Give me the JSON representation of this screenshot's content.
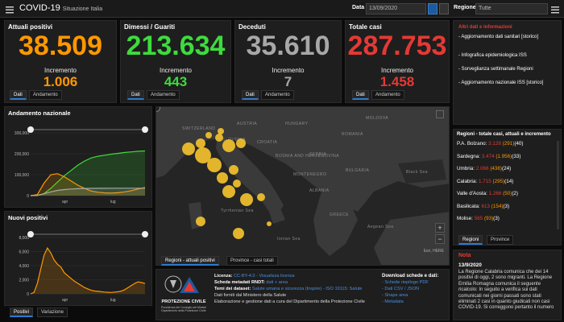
{
  "header": {
    "title": "COVID-19",
    "subtitle": "Situazione Italia",
    "date_label": "Data",
    "date_value": "13/09/2020",
    "region_label": "Regione",
    "region_value": "Tutte"
  },
  "kpis": [
    {
      "title": "Attuali positivi",
      "value": "38.509",
      "inc_label": "Incremento",
      "inc": "1.006",
      "color": "#ff9800",
      "inc_color": "#ff9800",
      "tabs": [
        "Dati",
        "Andamento"
      ]
    },
    {
      "title": "Dimessi / Guariti",
      "value": "213.634",
      "inc_label": "Incremento",
      "inc": "443",
      "color": "#3ddc3d",
      "inc_color": "#3ddc3d",
      "tabs": [
        "Dati",
        "Andamento"
      ]
    },
    {
      "title": "Deceduti",
      "value": "35.610",
      "inc_label": "Incremento",
      "inc": "7",
      "color": "#a8a8a8",
      "inc_color": "#a8a8a8",
      "tabs": [
        "Dati",
        "Andamento"
      ]
    },
    {
      "title": "Totale casi",
      "value": "287.753",
      "inc_label": "Incremento",
      "inc": "1.458",
      "color": "#e53935",
      "inc_color": "#e53935",
      "tabs": [
        "Dati",
        "Andamento"
      ]
    }
  ],
  "info_panel": {
    "title": "Altri dati e informazioni",
    "items": [
      "- Aggiornamento dati sanitari [storico]",
      "- Infografica epidemiologica ISS",
      "- Sorveglianza settimanale Regioni",
      "- Aggiornamento nazionale ISS [storico]"
    ]
  },
  "regions_panel": {
    "title": "Regioni - totale casi, attuali e incremento",
    "rows": [
      {
        "name": "P.A. Bolzano:",
        "total": "3.128",
        "active": "(291)",
        "inc": "(40)"
      },
      {
        "name": "Sardegna:",
        "total": "3.474",
        "active": "(1.956)",
        "inc": "(33)"
      },
      {
        "name": "Umbria:",
        "total": "2.066",
        "active": "(438)",
        "inc": "(24)"
      },
      {
        "name": "Calabria:",
        "total": "1.715",
        "active": "(295)",
        "inc": "(14)"
      },
      {
        "name": "Valle d'Aosta:",
        "total": "1.266",
        "active": "(50)",
        "inc": "(2)"
      },
      {
        "name": "Basilicata:",
        "total": "613",
        "active": "(154)",
        "inc": "(3)"
      },
      {
        "name": "Molise:",
        "total": "565",
        "active": "(93)",
        "inc": "(3)"
      }
    ],
    "tabs": [
      "Regioni",
      "Province"
    ]
  },
  "note_panel": {
    "title": "Nota",
    "date": "13/9/2020",
    "text": "La Regione Calabria comunica che dei 14 positivi di oggi, 2 sono migranti. La Regione Emilia Romagna comunica il seguente ricalcolo: In seguito a verifica sui dati comunicati nei giorni passati sono stati eliminati 2 casi in quanto giudicati non casi COVID-19. Si correggono pertanto il numero"
  },
  "map_panel": {
    "tabs": [
      "Regioni - attuali positivi",
      "Province - casi totali"
    ],
    "labels": [
      "SWITZERLAND",
      "AUSTRIA",
      "HUNGARY",
      "SLOVENIA",
      "CROATIA",
      "BOSNIA AND HERZEGOVINA",
      "SERBIA",
      "MOLDOVA",
      "ROMANIA",
      "BULGARIA",
      "Black Sea",
      "ALBANIA",
      "MONTENEGRO",
      "Tyrrhenian Sea",
      "GREECE",
      "Aegean Sea",
      "Ionian Sea"
    ],
    "attribution": "Esri, HERE"
  },
  "andamento": {
    "title": "Andamento nazionale",
    "chart_data": {
      "type": "area",
      "x_ticks": [
        "apr",
        "lug"
      ],
      "y_ticks": [
        "300,000",
        "200,000",
        "100,000",
        "0"
      ],
      "ylim": [
        0,
        300000
      ],
      "series": [
        {
          "color": "#3ddc3d",
          "values": [
            0,
            1000,
            10000,
            35000,
            65000,
            95000,
            120000,
            145000,
            165000,
            180000,
            188000,
            193000,
            198000,
            202000,
            206000,
            209000,
            212000,
            213634
          ]
        },
        {
          "color": "#ff9800",
          "values": [
            0,
            5000,
            60000,
            100000,
            105000,
            90000,
            70000,
            50000,
            35000,
            22000,
            16000,
            13000,
            12500,
            14000,
            18000,
            24000,
            32000,
            38509
          ]
        },
        {
          "color": "#a8a8a8",
          "values": [
            0,
            500,
            9000,
            18000,
            25000,
            29000,
            31500,
            33000,
            34200,
            34800,
            35000,
            35100,
            35200,
            35300,
            35400,
            35500,
            35550,
            35610
          ]
        }
      ]
    }
  },
  "nuovi_positivi": {
    "title": "Nuovi positivi",
    "tabs": [
      "Positivi",
      "Variazione"
    ],
    "chart_data": {
      "type": "area",
      "x_ticks": [
        "apr",
        "lug"
      ],
      "y_ticks": [
        "8,000",
        "6,000",
        "4,000",
        "2,000",
        "0"
      ],
      "ylim": [
        0,
        8000
      ],
      "series": [
        {
          "color": "#ff9800",
          "values": [
            0,
            200,
            1500,
            3500,
            5500,
            6500,
            5800,
            4800,
            4200,
            3800,
            3000,
            2600,
            2200,
            1800,
            1500,
            1200,
            900,
            700,
            500,
            400,
            350,
            300,
            250,
            220,
            200,
            250,
            300,
            400,
            600,
            900,
            1200,
            1500,
            1700,
            1600,
            1458
          ]
        }
      ]
    }
  },
  "footer": {
    "licenza_label": "Licenza:",
    "licenza_value": "CC-BY-4.0 - Visualizza licenza",
    "rndt_label": "Scheda metadati RNDT:",
    "rndt_value": "dati + area",
    "temi_label": "Temi dei dataset:",
    "temi_value": "Salute umana e sicurezza (Inspire) - ISO 19115: Salute",
    "fonte": "Dati forniti dal Ministero della Salute",
    "elab": "Elaborazione e gestione dati a cura del Dipartimento della Protezione Civile",
    "logo_text": "PROTEZIONE CIVILE",
    "logo_sub": "Presidenza del Consiglio dei Ministri Dipartimento della Protezione Civile",
    "download_title": "Download schede e dati:",
    "downloads": [
      "- Schede riepilogo PDF",
      "- Dati CSV / JSON",
      "- Shape area",
      "- Metadata"
    ]
  }
}
